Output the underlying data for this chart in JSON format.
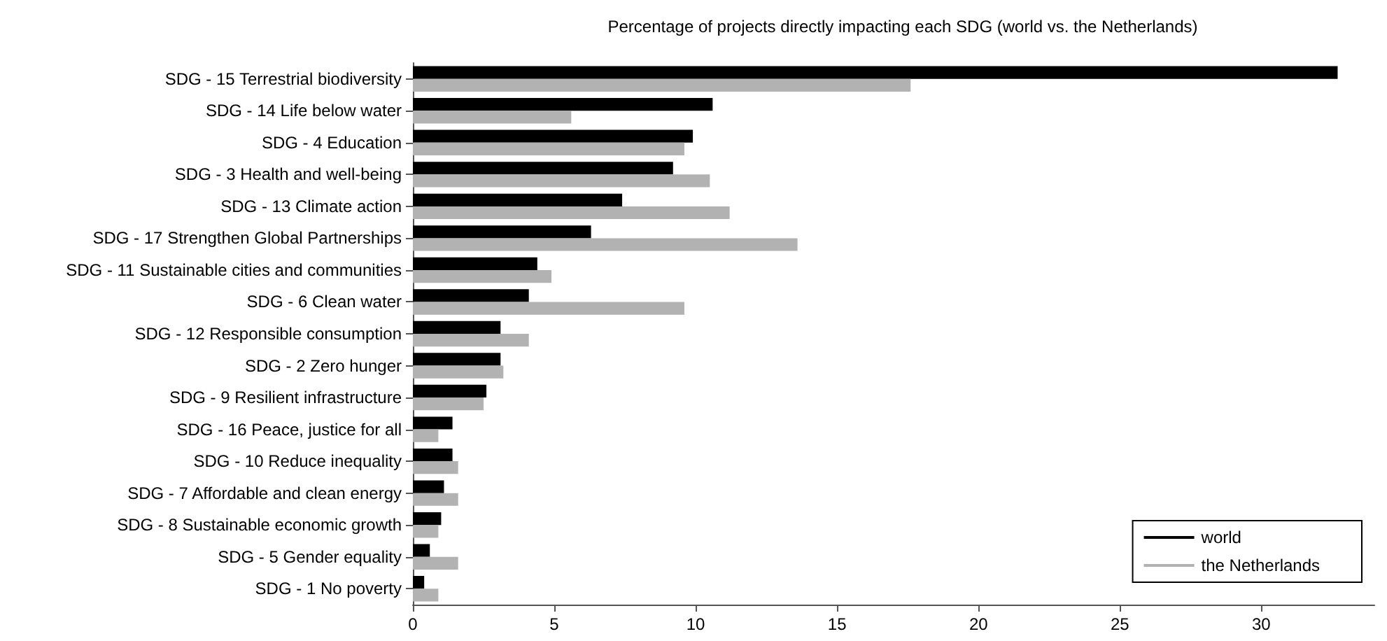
{
  "chart_data": {
    "type": "bar",
    "orientation": "horizontal",
    "title": "Percentage of projects directly impacting each SDG (world vs. the Netherlands)",
    "categories": [
      "SDG - 15 Terrestrial biodiversity",
      "SDG - 14 Life below water",
      "SDG - 4 Education",
      "SDG - 3 Health and well-being",
      "SDG - 13 Climate action",
      "SDG - 17 Strengthen Global Partnerships",
      "SDG - 11 Sustainable cities and communities",
      "SDG - 6 Clean water",
      "SDG - 12 Responsible consumption",
      "SDG - 2 Zero hunger",
      "SDG - 9 Resilient infrastructure",
      "SDG - 16 Peace, justice for all",
      "SDG - 10 Reduce inequality",
      "SDG - 7 Affordable and clean energy",
      "SDG - 8 Sustainable economic growth",
      "SDG - 5 Gender equality",
      "SDG - 1 No poverty"
    ],
    "series": [
      {
        "name": "world",
        "color": "#000000",
        "values": [
          32.7,
          10.6,
          9.9,
          9.2,
          7.4,
          6.3,
          4.4,
          4.1,
          3.1,
          3.1,
          2.6,
          1.4,
          1.4,
          1.1,
          1.0,
          0.6,
          0.4
        ]
      },
      {
        "name": "the Netherlands",
        "color": "#b2b2b2",
        "values": [
          17.6,
          5.6,
          9.6,
          10.5,
          11.2,
          13.6,
          4.9,
          9.6,
          4.1,
          3.2,
          2.5,
          0.9,
          1.6,
          1.6,
          0.9,
          1.6,
          0.9
        ]
      }
    ],
    "xlim": [
      0,
      34
    ],
    "xticks": [
      0,
      5,
      10,
      15,
      20,
      25,
      30
    ],
    "grid": false,
    "legend": "bottom right"
  }
}
